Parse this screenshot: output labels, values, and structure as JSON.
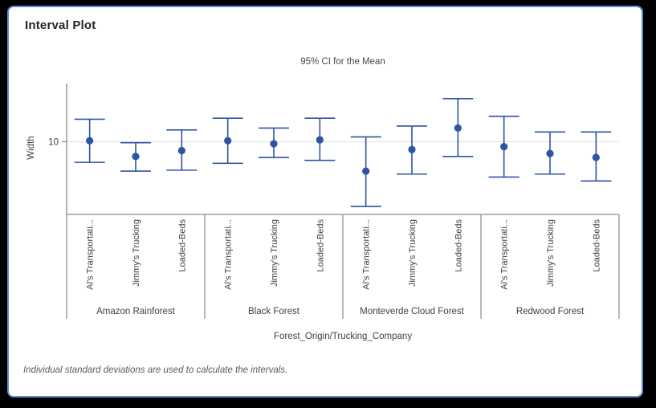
{
  "window": {
    "title": "Interval Plot"
  },
  "chart": {
    "subtitle": "95% CI for the Mean",
    "ylabel": "Width",
    "xlabel": "Forest_Origin/Trucking_Company",
    "footnote": "Individual standard deviations are used to calculate the intervals."
  },
  "colors": {
    "interval_blue": "#2e55a3",
    "gridline": "#e4e4e4",
    "axis_gray": "#8a8a8a",
    "tick_text": "#404040",
    "card_border": "#5c8bd6",
    "outer_background": "#000000"
  },
  "chart_data": {
    "type": "interval",
    "title": "95% CI for the Mean",
    "xlabel": "Forest_Origin/Trucking_Company",
    "ylabel": "Width",
    "grid": "horizontal-at-ticks",
    "y_ticks": [
      10
    ],
    "ylim": [
      2.6,
      15.9
    ],
    "legend": "none",
    "groups": [
      "Amazon Rainforest",
      "Black Forest",
      "Monteverde Cloud Forest",
      "Redwood Forest"
    ],
    "subcategories": [
      "Al's Transportati...",
      "Jimmy's Trucking",
      "Loaded-Beds"
    ],
    "series": [
      {
        "group": "Amazon Rainforest",
        "company": "Al's Transportati...",
        "mean": 10.1,
        "ci_low": 7.9,
        "ci_high": 12.3
      },
      {
        "group": "Amazon Rainforest",
        "company": "Jimmy's Trucking",
        "mean": 8.5,
        "ci_low": 7.0,
        "ci_high": 9.9
      },
      {
        "group": "Amazon Rainforest",
        "company": "Loaded-Beds",
        "mean": 9.1,
        "ci_low": 7.1,
        "ci_high": 11.2
      },
      {
        "group": "Black Forest",
        "company": "Al's Transportati...",
        "mean": 10.1,
        "ci_low": 7.8,
        "ci_high": 12.4
      },
      {
        "group": "Black Forest",
        "company": "Jimmy's Trucking",
        "mean": 9.8,
        "ci_low": 8.4,
        "ci_high": 11.4
      },
      {
        "group": "Black Forest",
        "company": "Loaded-Beds",
        "mean": 10.2,
        "ci_low": 8.1,
        "ci_high": 12.4
      },
      {
        "group": "Monteverde Cloud Forest",
        "company": "Al's Transportati...",
        "mean": 7.0,
        "ci_low": 3.4,
        "ci_high": 10.5
      },
      {
        "group": "Monteverde Cloud Forest",
        "company": "Jimmy's Trucking",
        "mean": 9.2,
        "ci_low": 6.7,
        "ci_high": 11.6
      },
      {
        "group": "Monteverde Cloud Forest",
        "company": "Loaded-Beds",
        "mean": 11.4,
        "ci_low": 8.5,
        "ci_high": 14.4
      },
      {
        "group": "Redwood Forest",
        "company": "Al's Transportati...",
        "mean": 9.5,
        "ci_low": 6.4,
        "ci_high": 12.6
      },
      {
        "group": "Redwood Forest",
        "company": "Jimmy's Trucking",
        "mean": 8.8,
        "ci_low": 6.7,
        "ci_high": 11.0
      },
      {
        "group": "Redwood Forest",
        "company": "Loaded-Beds",
        "mean": 8.4,
        "ci_low": 6.0,
        "ci_high": 11.0
      }
    ],
    "footnote": "Individual standard deviations are used to calculate the intervals."
  }
}
